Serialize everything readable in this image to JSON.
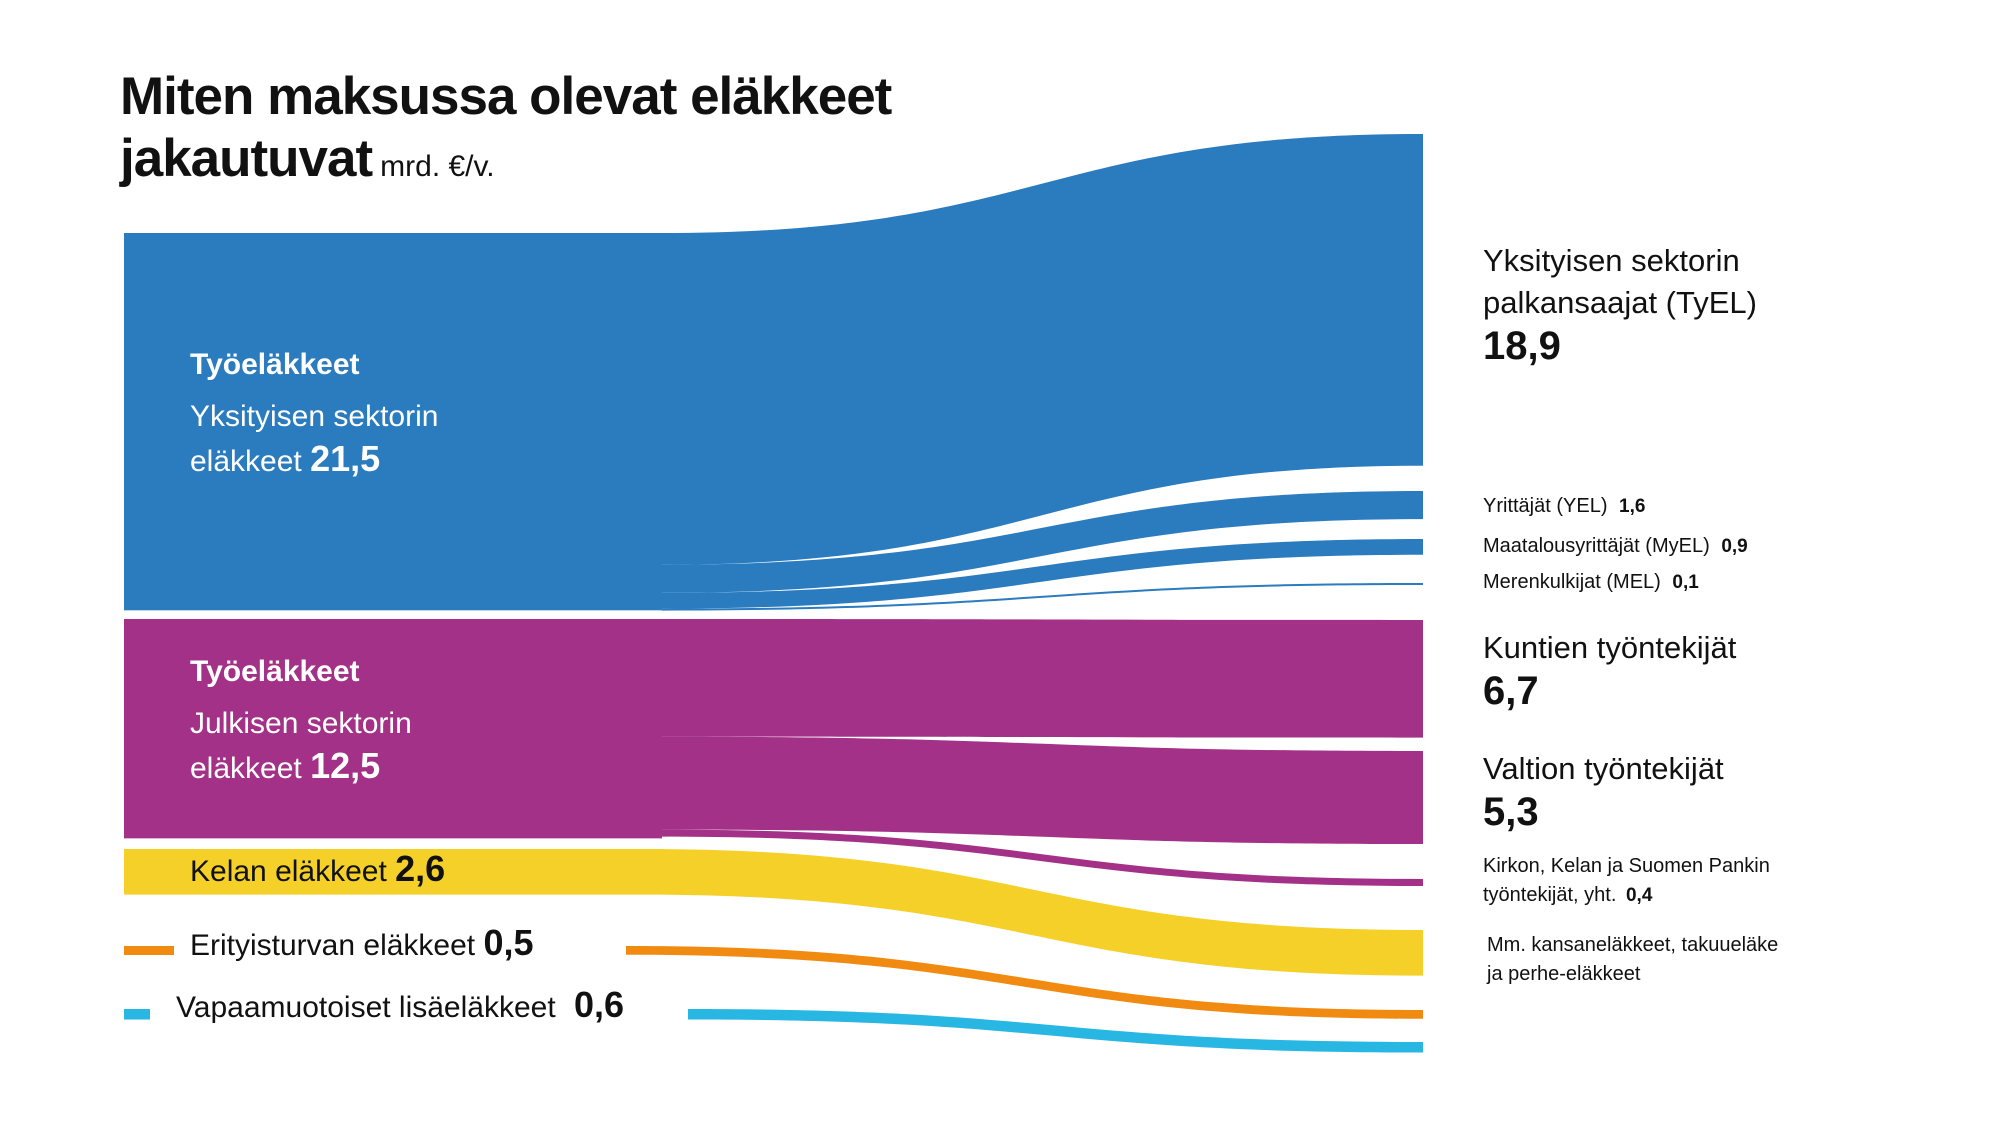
{
  "title": {
    "line1": "Miten maksussa olevat eläkkeet",
    "line2": "jakautuvat",
    "unit": "mrd. €/v."
  },
  "colors": {
    "private": "#2b7bbf",
    "public": "#a33187",
    "kela": "#f5d028",
    "special": "#f08a10",
    "voluntary": "#28b6e2"
  },
  "chart_data": {
    "type": "sankey",
    "unit": "mrd. €/v.",
    "sources": [
      {
        "id": "private",
        "header": "Työeläkkeet",
        "label": "Yksityisen sektorin eläkkeet",
        "label_line1": "Yksityisen sektorin",
        "label_line2": "eläkkeet",
        "value": 21.5,
        "value_text": "21,5",
        "color": "#2b7bbf"
      },
      {
        "id": "public",
        "header": "Työeläkkeet",
        "label": "Julkisen sektorin eläkkeet",
        "label_line1": "Julkisen sektorin",
        "label_line2": "eläkkeet",
        "value": 12.5,
        "value_text": "12,5",
        "color": "#a33187"
      },
      {
        "id": "kela",
        "label": "Kelan eläkkeet",
        "value": 2.6,
        "value_text": "2,6",
        "color": "#f5d028"
      },
      {
        "id": "special",
        "label": "Erityisturvan eläkkeet",
        "value": 0.5,
        "value_text": "0,5",
        "color": "#f08a10"
      },
      {
        "id": "voluntary",
        "label": "Vapaamuotoiset lisäeläkkeet",
        "value": 0.6,
        "value_text": "0,6",
        "color": "#28b6e2"
      }
    ],
    "targets": [
      {
        "id": "tyel",
        "label_line1": "Yksityisen sektorin",
        "label_line2": "palkansaajat (TyEL)",
        "value": 18.9,
        "value_text": "18,9",
        "source": "private"
      },
      {
        "id": "yel",
        "label": "Yrittäjät (YEL)",
        "value": 1.6,
        "value_text": "1,6",
        "source": "private"
      },
      {
        "id": "myel",
        "label": "Maatalousyrittäjät (MyEL)",
        "value": 0.9,
        "value_text": "0,9",
        "source": "private"
      },
      {
        "id": "mel",
        "label": "Merenkulkijat (MEL)",
        "value": 0.1,
        "value_text": "0,1",
        "source": "private"
      },
      {
        "id": "kunta",
        "label": "Kuntien työntekijät",
        "value": 6.7,
        "value_text": "6,7",
        "source": "public"
      },
      {
        "id": "valtio",
        "label": "Valtion työntekijät",
        "value": 5.3,
        "value_text": "5,3",
        "source": "public"
      },
      {
        "id": "kirkko",
        "label_line1": "Kirkon, Kelan ja Suomen Pankin",
        "label_line2": "työntekijät, yht.",
        "value": 0.4,
        "value_text": "0,4",
        "source": "public"
      },
      {
        "id": "kela_t",
        "label_line1": "Mm. kansaneläkkeet, takuueläke",
        "label_line2": "ja perhe-eläkkeet",
        "value": 2.6,
        "source": "kela"
      },
      {
        "id": "special_t",
        "value": 0.5,
        "source": "special"
      },
      {
        "id": "voluntary_t",
        "value": 0.6,
        "source": "voluntary"
      }
    ]
  }
}
